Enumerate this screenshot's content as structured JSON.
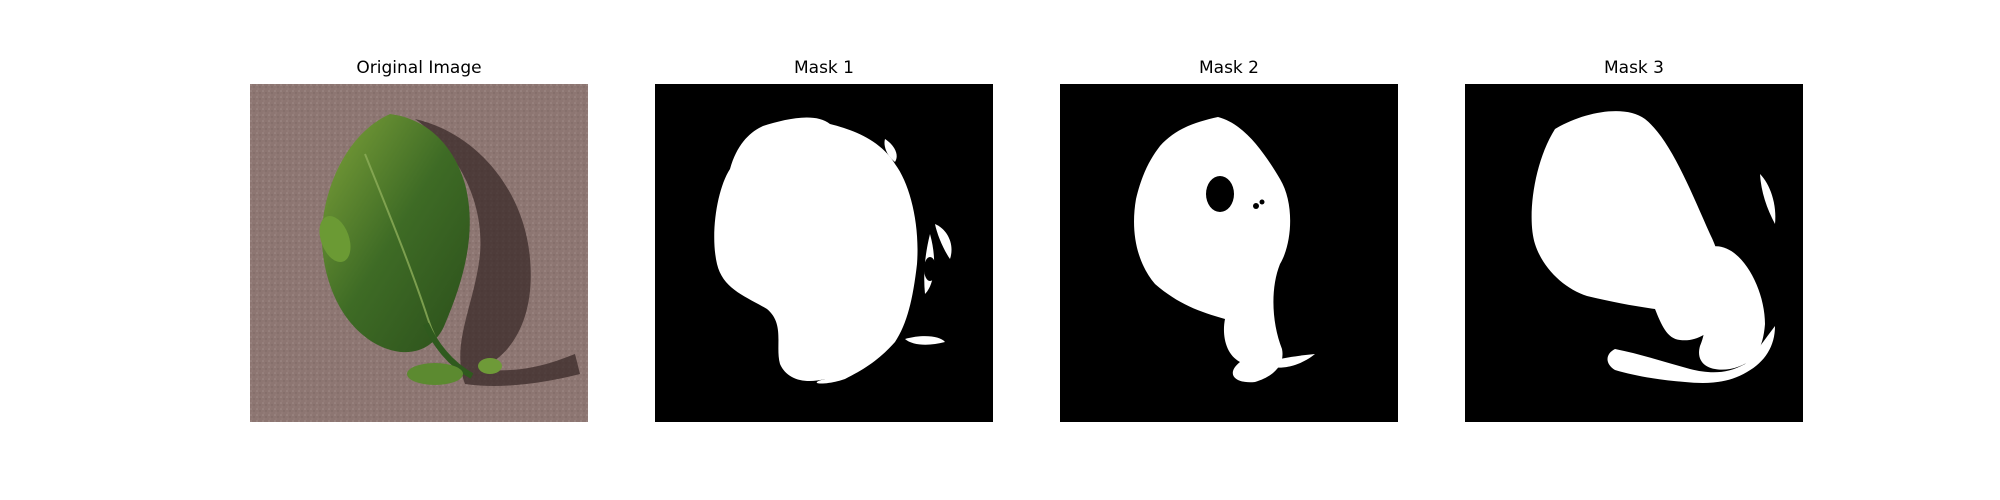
{
  "figure": {
    "panels": [
      {
        "title": "Original Image"
      },
      {
        "title": "Mask 1"
      },
      {
        "title": "Mask 2"
      },
      {
        "title": "Mask 3"
      }
    ]
  },
  "colors": {
    "mask_background": "#000000",
    "mask_foreground": "#ffffff",
    "photo_background": "#8f7a76",
    "leaf_green": "#3f6a26"
  }
}
